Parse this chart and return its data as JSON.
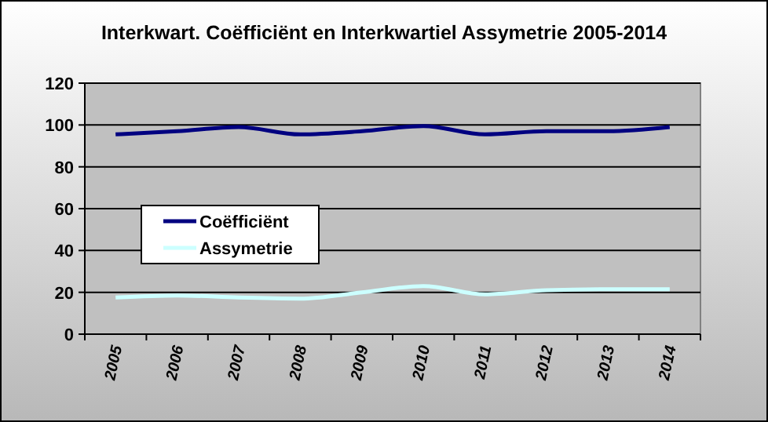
{
  "chart_data": {
    "type": "line",
    "title": "Interkwart. Coëfficiënt en Interkwartiel Assymetrie 2005-2014",
    "categories": [
      "2005",
      "2006",
      "2007",
      "2008",
      "2009",
      "2010",
      "2011",
      "2012",
      "2013",
      "2014"
    ],
    "series": [
      {
        "name": "Coëfficiënt",
        "color": "#000080",
        "values": [
          95.5,
          97,
          99,
          95.5,
          97,
          99.5,
          95.5,
          97,
          97,
          99
        ]
      },
      {
        "name": "Assymetrie",
        "color": "#ccffff",
        "values": [
          17.5,
          18.5,
          17.5,
          17,
          20,
          23,
          19,
          21,
          21.5,
          21.5
        ]
      }
    ],
    "ylim": [
      0,
      120
    ],
    "yticks": [
      0,
      20,
      40,
      60,
      80,
      100,
      120
    ],
    "grid": "y",
    "legend": "left",
    "marker": "none",
    "line_style": "solid"
  }
}
